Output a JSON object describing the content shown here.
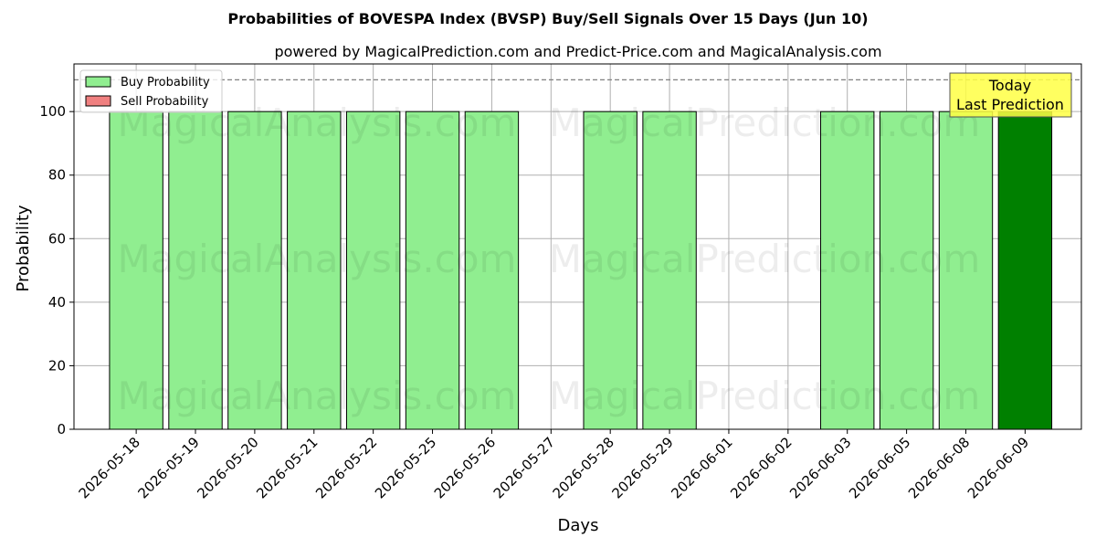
{
  "chart_data": {
    "type": "bar",
    "title": "Probabilities of BOVESPA Index (BVSP) Buy/Sell Signals Over 15 Days (Jun 10)",
    "subtitle": "powered by MagicalPrediction.com and Predict-Price.com and MagicalAnalysis.com",
    "xlabel": "Days",
    "ylabel": "Probability",
    "ylim": [
      0,
      115
    ],
    "yticks": [
      0,
      20,
      40,
      60,
      80,
      100
    ],
    "grid": true,
    "legend_placement": "top-left",
    "categories": [
      "2026-05-18",
      "2026-05-19",
      "2026-05-20",
      "2026-05-21",
      "2026-05-22",
      "2026-05-25",
      "2026-05-26",
      "2026-05-27",
      "2026-05-28",
      "2026-05-29",
      "2026-06-01",
      "2026-06-02",
      "2026-06-03",
      "2026-06-05",
      "2026-06-08",
      "2026-06-09"
    ],
    "series": [
      {
        "name": "Buy Probability",
        "color": "#90ee90",
        "values": [
          100,
          100,
          100,
          100,
          100,
          100,
          100,
          null,
          100,
          100,
          null,
          null,
          100,
          100,
          100,
          100
        ]
      },
      {
        "name": "Sell Probability",
        "color": "#f08080",
        "values": [
          null,
          null,
          null,
          null,
          null,
          null,
          null,
          null,
          null,
          null,
          null,
          null,
          null,
          null,
          null,
          null
        ]
      }
    ],
    "highlight": {
      "category": "2026-06-09",
      "color": "#008000"
    },
    "reference_line": {
      "y": 110,
      "style": "dashed",
      "color": "#808080"
    },
    "annotation": {
      "lines": [
        "Today",
        "Last Prediction"
      ],
      "background": "#ffff44"
    },
    "watermarks": [
      "MagicalAnalysis.com",
      "MagicalPrediction.com"
    ]
  }
}
